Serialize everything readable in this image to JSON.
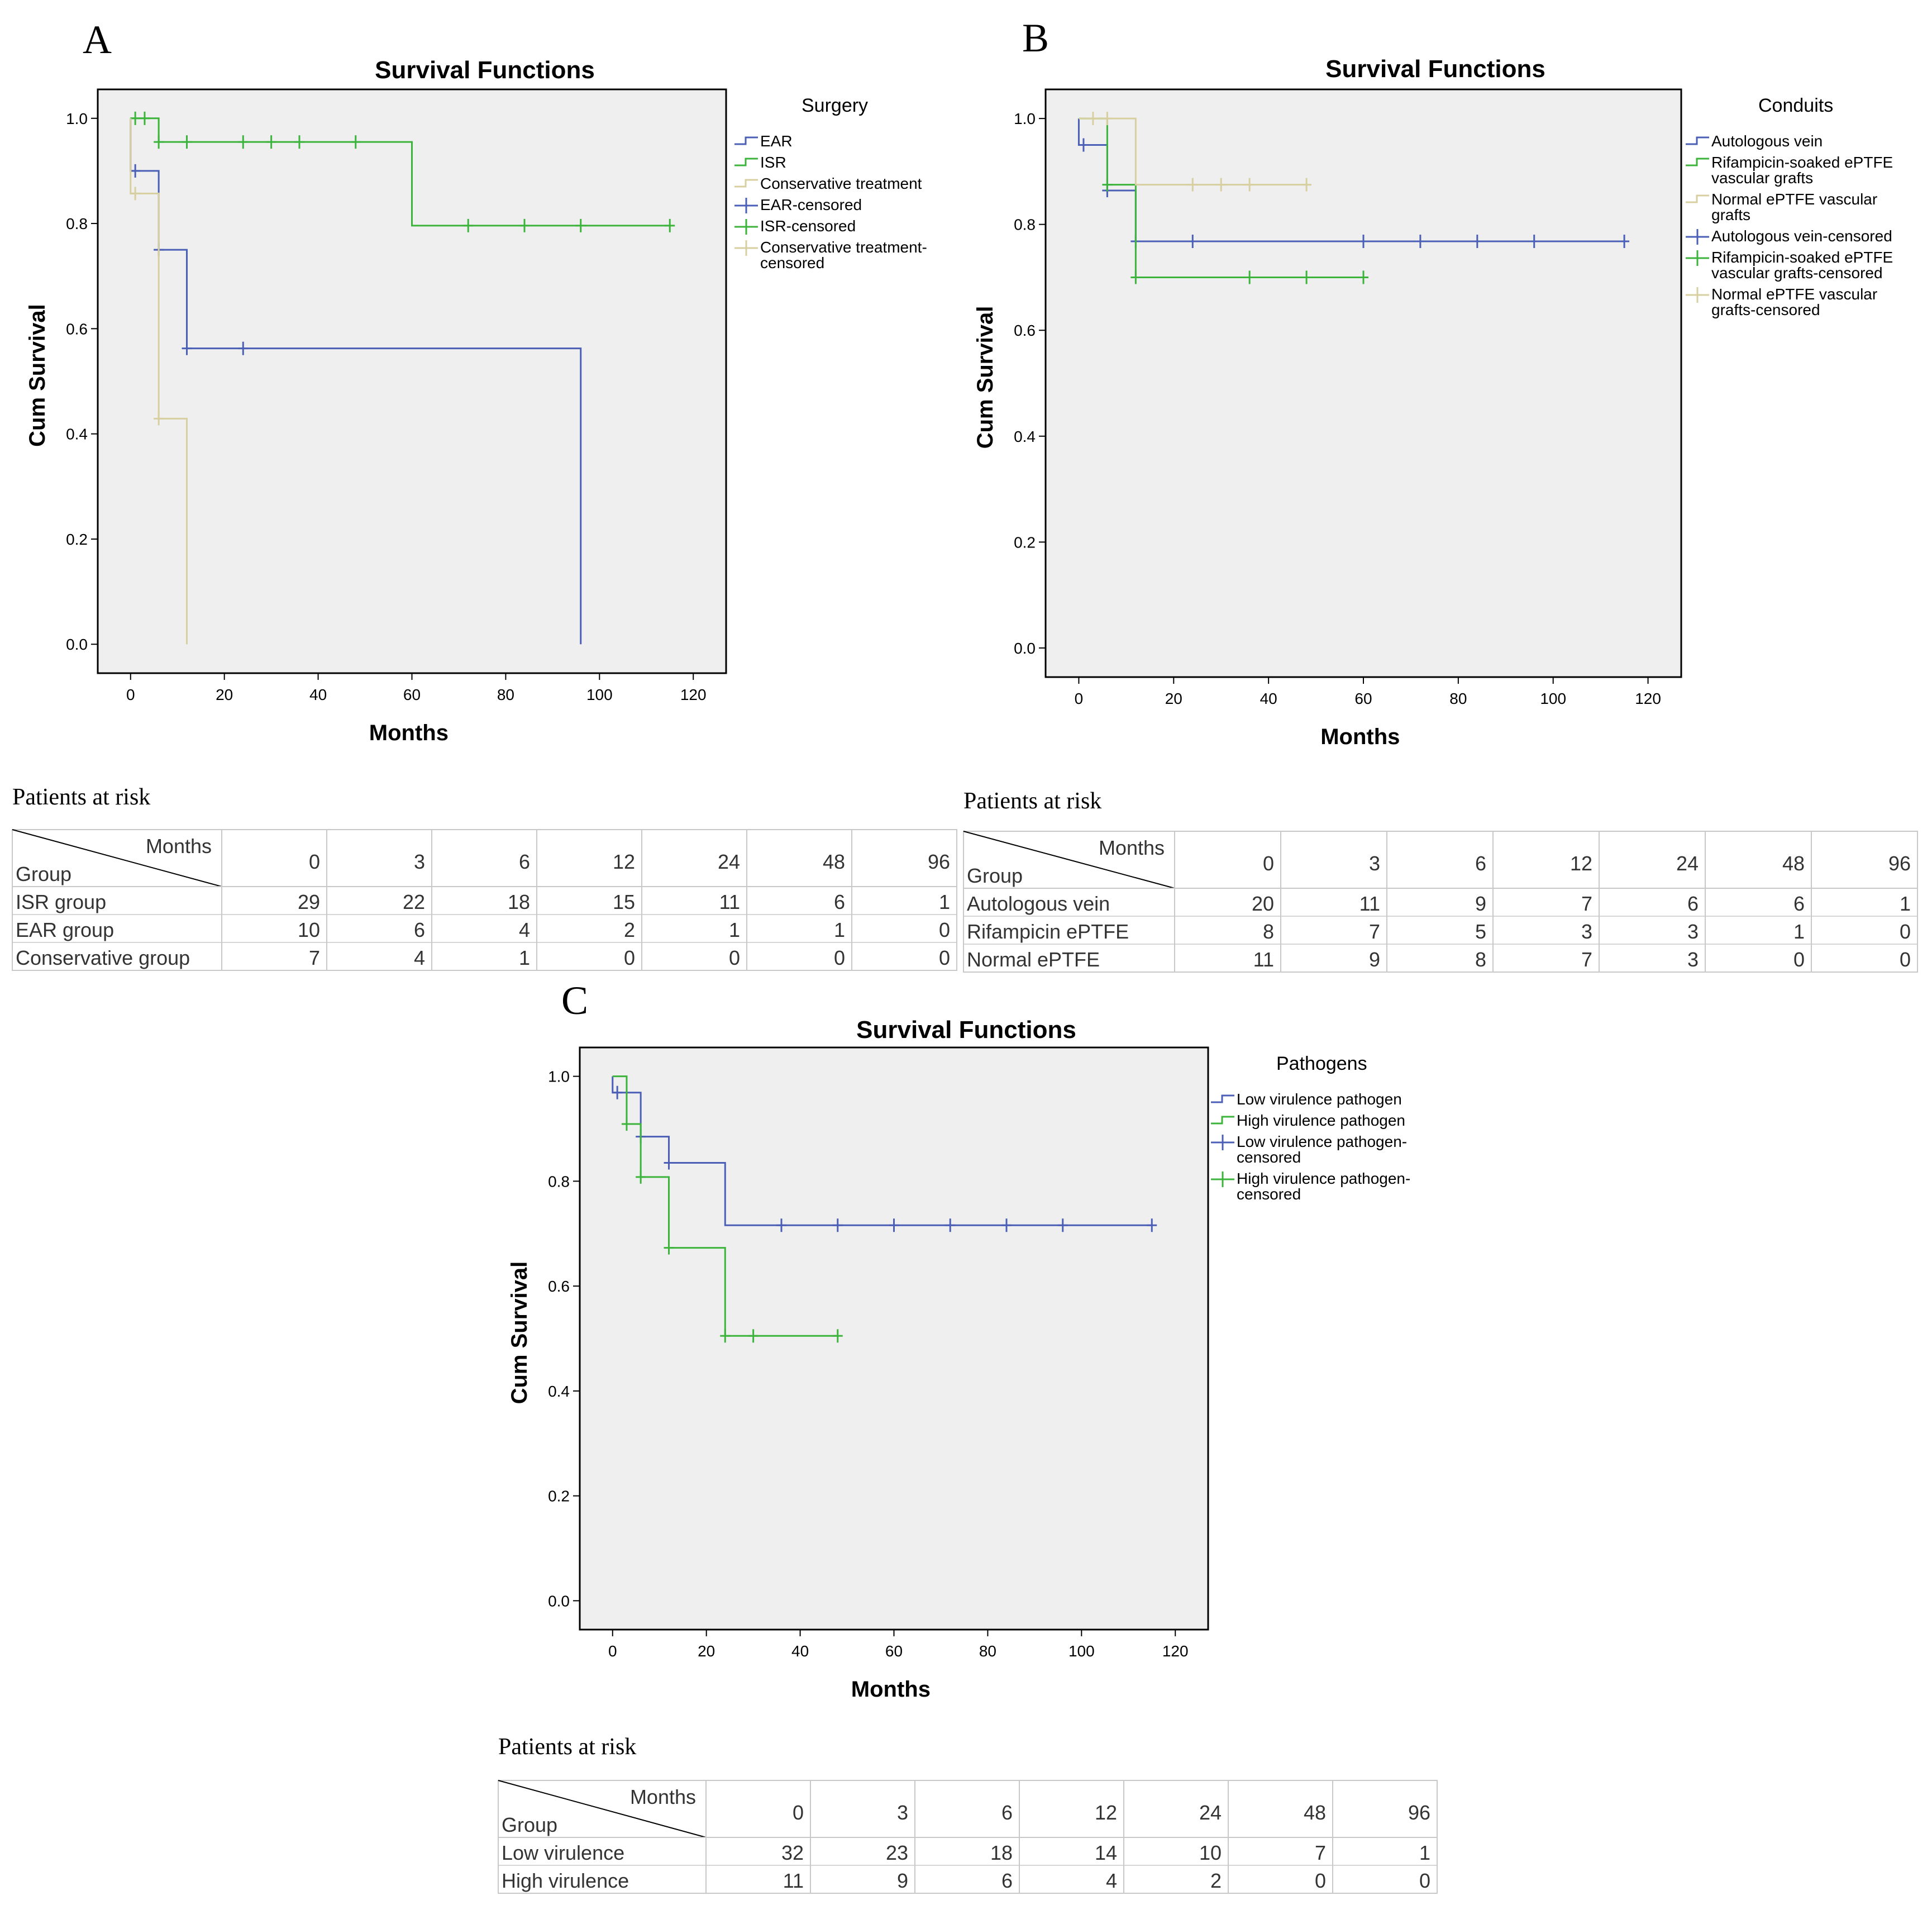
{
  "colors": {
    "blue": "#4a5fb5",
    "green": "#3cb43c",
    "tan": "#d8cfa0",
    "plot_bg": "#efefef",
    "grid_line": "#c8c8c8"
  },
  "panels": [
    {
      "letter": "A",
      "legend_title": "Surgery",
      "legend_items": [
        {
          "label": "EAR",
          "color": "blue",
          "kind": "step"
        },
        {
          "label": "ISR",
          "color": "green",
          "kind": "step"
        },
        {
          "label": "Conservative treatment",
          "color": "tan",
          "kind": "step"
        },
        {
          "label": "EAR-censored",
          "color": "blue",
          "kind": "censor"
        },
        {
          "label": "ISR-censored",
          "color": "green",
          "kind": "censor"
        },
        {
          "label": "Conservative treatment-\ncensored",
          "color": "tan",
          "kind": "censor"
        }
      ],
      "risk_table": {
        "title": "Patients at risk",
        "header_months": "Months",
        "header_group": "Group",
        "months": [
          "0",
          "3",
          "6",
          "12",
          "24",
          "48",
          "96"
        ],
        "rows": [
          {
            "group": "ISR group",
            "values": [
              "29",
              "22",
              "18",
              "15",
              "11",
              "6",
              "1"
            ]
          },
          {
            "group": "EAR group",
            "values": [
              "10",
              "6",
              "4",
              "2",
              "1",
              "1",
              "0"
            ]
          },
          {
            "group": "Conservative group",
            "values": [
              "7",
              "4",
              "1",
              "0",
              "0",
              "0",
              "0"
            ]
          }
        ]
      }
    },
    {
      "letter": "B",
      "legend_title": "Conduits",
      "legend_items": [
        {
          "label": "Autologous vein",
          "color": "blue",
          "kind": "step"
        },
        {
          "label": "Rifampicin-soaked ePTFE\nvascular grafts",
          "color": "green",
          "kind": "step"
        },
        {
          "label": "Normal ePTFE vascular\ngrafts",
          "color": "tan",
          "kind": "step"
        },
        {
          "label": "Autologous vein-censored",
          "color": "blue",
          "kind": "censor"
        },
        {
          "label": "Rifampicin-soaked ePTFE\nvascular grafts-censored",
          "color": "green",
          "kind": "censor"
        },
        {
          "label": "Normal ePTFE vascular\ngrafts-censored",
          "color": "tan",
          "kind": "censor"
        }
      ],
      "risk_table": {
        "title": "Patients at risk",
        "header_months": "Months",
        "header_group": "Group",
        "months": [
          "0",
          "3",
          "6",
          "12",
          "24",
          "48",
          "96"
        ],
        "rows": [
          {
            "group": "Autologous vein",
            "values": [
              "20",
              "11",
              "9",
              "7",
              "6",
              "6",
              "1"
            ]
          },
          {
            "group": "Rifampicin ePTFE",
            "values": [
              "8",
              "7",
              "5",
              "3",
              "3",
              "1",
              "0"
            ]
          },
          {
            "group": "Normal ePTFE",
            "values": [
              "11",
              "9",
              "8",
              "7",
              "3",
              "0",
              "0"
            ]
          }
        ]
      }
    },
    {
      "letter": "C",
      "legend_title": "Pathogens",
      "legend_items": [
        {
          "label": "Low virulence pathogen",
          "color": "blue",
          "kind": "step"
        },
        {
          "label": "High virulence pathogen",
          "color": "green",
          "kind": "step"
        },
        {
          "label": "Low virulence pathogen-\ncensored",
          "color": "blue",
          "kind": "censor"
        },
        {
          "label": "High virulence pathogen-\ncensored",
          "color": "green",
          "kind": "censor"
        }
      ],
      "risk_table": {
        "title": "Patients at risk",
        "header_months": "Months",
        "header_group": "Group",
        "months": [
          "0",
          "3",
          "6",
          "12",
          "24",
          "48",
          "96"
        ],
        "rows": [
          {
            "group": "Low virulence",
            "values": [
              "32",
              "23",
              "18",
              "14",
              "10",
              "7",
              "1"
            ]
          },
          {
            "group": "High virulence",
            "values": [
              "11",
              "9",
              "6",
              "4",
              "2",
              "0",
              "0"
            ]
          }
        ]
      }
    }
  ],
  "chart_data": [
    {
      "type": "line",
      "subtype": "kaplan-meier-step",
      "title": "Survival Functions",
      "xlabel": "Months",
      "ylabel": "Cum Survival",
      "xlim": [
        -7,
        127
      ],
      "ylim": [
        -0.055,
        1.055
      ],
      "xticks": [
        0,
        20,
        40,
        60,
        80,
        100,
        120
      ],
      "yticks": [
        0.0,
        0.2,
        0.4,
        0.6,
        0.8,
        1.0
      ],
      "ytick_labels": [
        "0.0",
        "0.2",
        "0.4",
        "0.6",
        "0.8",
        "1.0"
      ],
      "series": [
        {
          "name": "EAR",
          "color": "blue",
          "steps": [
            [
              0,
              0.9
            ],
            [
              6,
              0.75
            ],
            [
              12,
              0.5625
            ],
            [
              96,
              0.0
            ]
          ],
          "end_x": 96,
          "censored": [
            [
              1,
              0.9
            ],
            [
              6,
              0.75
            ],
            [
              12,
              0.5625
            ],
            [
              24,
              0.5625
            ]
          ]
        },
        {
          "name": "ISR",
          "color": "green",
          "steps": [
            [
              0,
              1.0
            ],
            [
              6,
              0.955
            ],
            [
              60,
              0.796
            ]
          ],
          "end_x": 115,
          "censored": [
            [
              1,
              1.0
            ],
            [
              3,
              1.0
            ],
            [
              6,
              0.955
            ],
            [
              12,
              0.955
            ],
            [
              24,
              0.955
            ],
            [
              30,
              0.955
            ],
            [
              36,
              0.955
            ],
            [
              48,
              0.955
            ],
            [
              72,
              0.796
            ],
            [
              84,
              0.796
            ],
            [
              96,
              0.796
            ],
            [
              115,
              0.796
            ]
          ]
        },
        {
          "name": "Conservative treatment",
          "color": "tan",
          "steps": [
            [
              0,
              0.857
            ],
            [
              6,
              0.429
            ],
            [
              12,
              0.0
            ]
          ],
          "end_x": 12,
          "censored": [
            [
              1,
              0.857
            ],
            [
              6,
              0.429
            ]
          ]
        }
      ]
    },
    {
      "type": "line",
      "subtype": "kaplan-meier-step",
      "title": "Survival Functions",
      "xlabel": "Months",
      "ylabel": "Cum Survival",
      "xlim": [
        -7,
        127
      ],
      "ylim": [
        -0.055,
        1.055
      ],
      "xticks": [
        0,
        20,
        40,
        60,
        80,
        100,
        120
      ],
      "yticks": [
        0.0,
        0.2,
        0.4,
        0.6,
        0.8,
        1.0
      ],
      "ytick_labels": [
        "0.0",
        "0.2",
        "0.4",
        "0.6",
        "0.8",
        "1.0"
      ],
      "series": [
        {
          "name": "Autologous vein",
          "color": "blue",
          "steps": [
            [
              0,
              0.95
            ],
            [
              6,
              0.864
            ],
            [
              12,
              0.768
            ]
          ],
          "end_x": 115,
          "censored": [
            [
              1,
              0.95
            ],
            [
              6,
              0.864
            ],
            [
              12,
              0.768
            ],
            [
              24,
              0.768
            ],
            [
              60,
              0.768
            ],
            [
              72,
              0.768
            ],
            [
              84,
              0.768
            ],
            [
              96,
              0.768
            ],
            [
              115,
              0.768
            ]
          ]
        },
        {
          "name": "Rifampicin-soaked ePTFE vascular grafts",
          "color": "green",
          "steps": [
            [
              0,
              1.0
            ],
            [
              6,
              0.875
            ],
            [
              12,
              0.7
            ]
          ],
          "end_x": 60,
          "censored": [
            [
              6,
              0.875
            ],
            [
              12,
              0.7
            ],
            [
              36,
              0.7
            ],
            [
              48,
              0.7
            ],
            [
              60,
              0.7
            ]
          ]
        },
        {
          "name": "Normal ePTFE vascular grafts",
          "color": "tan",
          "steps": [
            [
              0,
              1.0
            ],
            [
              12,
              0.875
            ]
          ],
          "end_x": 48,
          "censored": [
            [
              3,
              1.0
            ],
            [
              6,
              1.0
            ],
            [
              24,
              0.875
            ],
            [
              30,
              0.875
            ],
            [
              36,
              0.875
            ],
            [
              48,
              0.875
            ]
          ]
        }
      ]
    },
    {
      "type": "line",
      "subtype": "kaplan-meier-step",
      "title": "Survival Functions",
      "xlabel": "Months",
      "ylabel": "Cum Survival",
      "xlim": [
        -7,
        127
      ],
      "ylim": [
        -0.055,
        1.055
      ],
      "xticks": [
        0,
        20,
        40,
        60,
        80,
        100,
        120
      ],
      "yticks": [
        0.0,
        0.2,
        0.4,
        0.6,
        0.8,
        1.0
      ],
      "ytick_labels": [
        "0.0",
        "0.2",
        "0.4",
        "0.6",
        "0.8",
        "1.0"
      ],
      "series": [
        {
          "name": "Low virulence pathogen",
          "color": "blue",
          "steps": [
            [
              0,
              0.969
            ],
            [
              6,
              0.885
            ],
            [
              12,
              0.835
            ],
            [
              24,
              0.716
            ]
          ],
          "end_x": 115,
          "censored": [
            [
              1,
              0.969
            ],
            [
              6,
              0.885
            ],
            [
              12,
              0.835
            ],
            [
              36,
              0.716
            ],
            [
              48,
              0.716
            ],
            [
              60,
              0.716
            ],
            [
              72,
              0.716
            ],
            [
              84,
              0.716
            ],
            [
              96,
              0.716
            ],
            [
              115,
              0.716
            ]
          ]
        },
        {
          "name": "High virulence pathogen",
          "color": "green",
          "steps": [
            [
              0,
              1.0
            ],
            [
              3,
              0.909
            ],
            [
              6,
              0.808
            ],
            [
              12,
              0.673
            ],
            [
              24,
              0.505
            ]
          ],
          "end_x": 48,
          "censored": [
            [
              3,
              0.909
            ],
            [
              6,
              0.808
            ],
            [
              12,
              0.673
            ],
            [
              24,
              0.505
            ],
            [
              30,
              0.505
            ],
            [
              48,
              0.505
            ]
          ]
        }
      ]
    }
  ]
}
